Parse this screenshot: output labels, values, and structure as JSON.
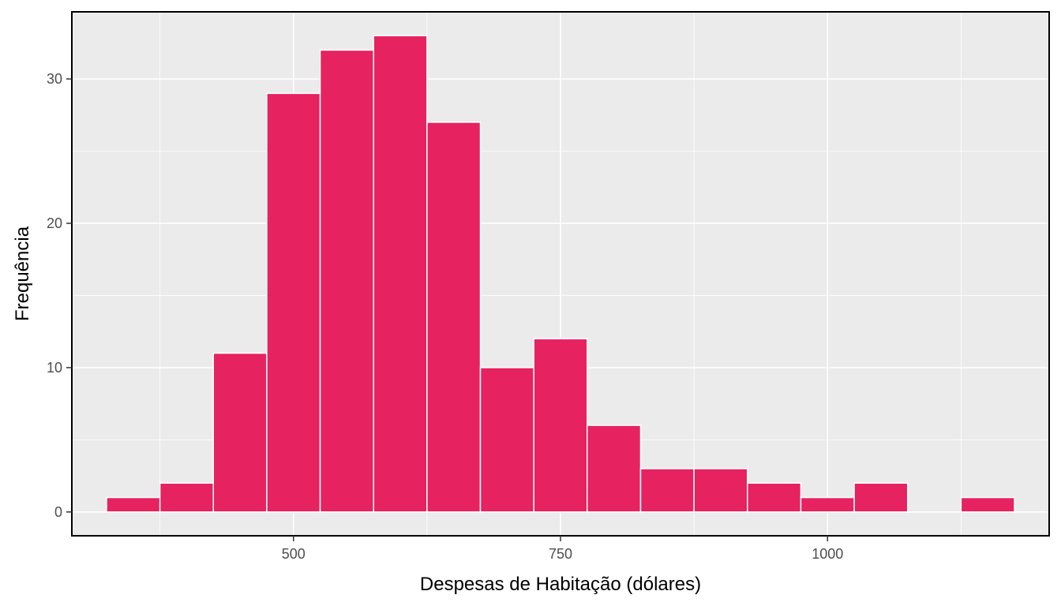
{
  "chart_data": {
    "type": "bar",
    "subtype": "histogram",
    "title": "",
    "xlabel": "Despesas de Habitação (dólares)",
    "ylabel": "Frequência",
    "bin_width": 50,
    "bins": [
      {
        "x0": 325,
        "x1": 375,
        "count": 1
      },
      {
        "x0": 375,
        "x1": 425,
        "count": 2
      },
      {
        "x0": 425,
        "x1": 475,
        "count": 11
      },
      {
        "x0": 475,
        "x1": 525,
        "count": 29
      },
      {
        "x0": 525,
        "x1": 575,
        "count": 32
      },
      {
        "x0": 575,
        "x1": 625,
        "count": 33
      },
      {
        "x0": 625,
        "x1": 675,
        "count": 27
      },
      {
        "x0": 675,
        "x1": 725,
        "count": 10
      },
      {
        "x0": 725,
        "x1": 775,
        "count": 12
      },
      {
        "x0": 775,
        "x1": 825,
        "count": 6
      },
      {
        "x0": 825,
        "x1": 875,
        "count": 3
      },
      {
        "x0": 875,
        "x1": 925,
        "count": 3
      },
      {
        "x0": 925,
        "x1": 975,
        "count": 2
      },
      {
        "x0": 975,
        "x1": 1025,
        "count": 1
      },
      {
        "x0": 1025,
        "x1": 1075,
        "count": 2
      },
      {
        "x0": 1075,
        "x1": 1125,
        "count": 0
      },
      {
        "x0": 1125,
        "x1": 1175,
        "count": 1
      }
    ],
    "xlim": [
      292.5,
      1207.5
    ],
    "ylim": [
      -1.65,
      34.65
    ],
    "x_ticks": [
      500,
      750,
      1000
    ],
    "x_tick_labels": [
      "500",
      "750",
      "1000"
    ],
    "y_ticks": [
      0,
      10,
      20,
      30
    ],
    "y_tick_labels": [
      "0",
      "10",
      "20",
      "30"
    ],
    "x_minor_grid": [
      375,
      625,
      875,
      1125
    ],
    "y_minor_grid": [
      5,
      15,
      25
    ],
    "grid": true,
    "legend": "none",
    "colors": {
      "bar_fill": "#E62260",
      "bar_outline": "#FFFFFF",
      "panel_background": "#EBEBEB",
      "grid": "#FFFFFF",
      "panel_border": "#000000"
    }
  }
}
